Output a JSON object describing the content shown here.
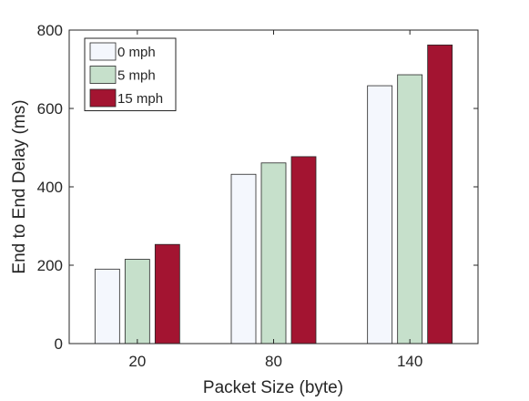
{
  "chart_data": {
    "type": "bar",
    "title": "",
    "xlabel": "Packet Size (byte)",
    "ylabel": "End to End Delay (ms)",
    "categories": [
      "20",
      "80",
      "140"
    ],
    "ylim": [
      0,
      800
    ],
    "yticks": [
      0,
      200,
      400,
      600,
      800
    ],
    "grid": false,
    "legend": "top-left",
    "series": [
      {
        "name": "0 mph",
        "values": [
          190,
          432,
          658
        ],
        "color": "#f4f7fd"
      },
      {
        "name": "5 mph",
        "values": [
          215,
          461,
          686
        ],
        "color": "#c6e0cb"
      },
      {
        "name": "15 mph",
        "values": [
          253,
          477,
          762
        ],
        "color": "#a31431"
      }
    ]
  }
}
